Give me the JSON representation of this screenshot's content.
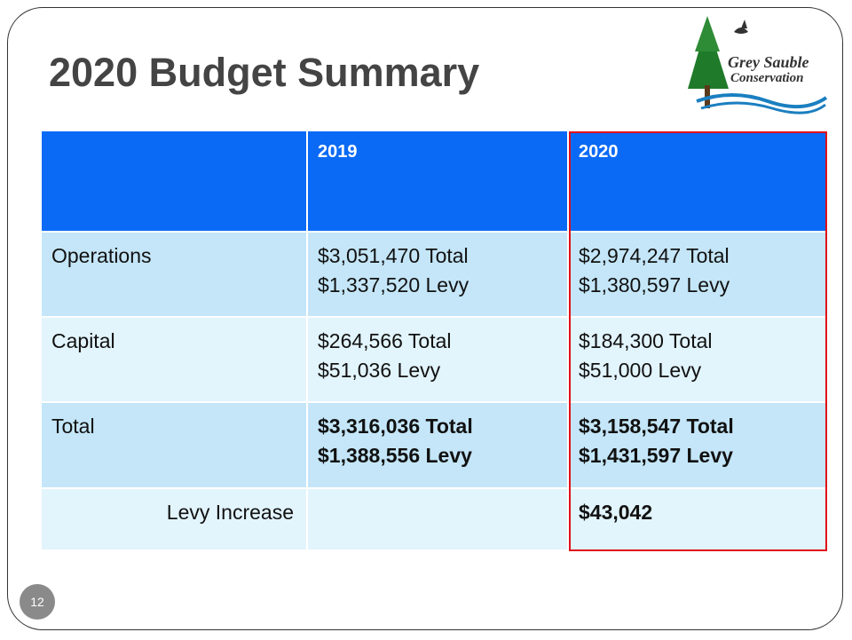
{
  "header": {
    "title": "2020 Budget Summary",
    "logo": [
      "Grey Sauble",
      "Conservation"
    ]
  },
  "table": {
    "columns": [
      "",
      "2019",
      "2020"
    ],
    "rows": [
      [
        "Operations",
        [
          "$3,051,470 Total",
          "$1,337,520 Levy"
        ],
        [
          "$2,974,247 Total",
          "$1,380,597 Levy"
        ]
      ],
      [
        "Capital",
        [
          "$264,566 Total",
          "$51,036 Levy"
        ],
        [
          "$184,300 Total",
          "$51,000 Levy"
        ]
      ],
      [
        "Total",
        [
          "$3,316,036 Total",
          "$1,388,556 Levy"
        ],
        [
          "$3,158,547 Total",
          "$1,431,597 Levy"
        ]
      ],
      [
        "Levy Increase",
        [],
        [
          "$43,042"
        ]
      ]
    ]
  },
  "footer": {
    "page_number": "12"
  }
}
